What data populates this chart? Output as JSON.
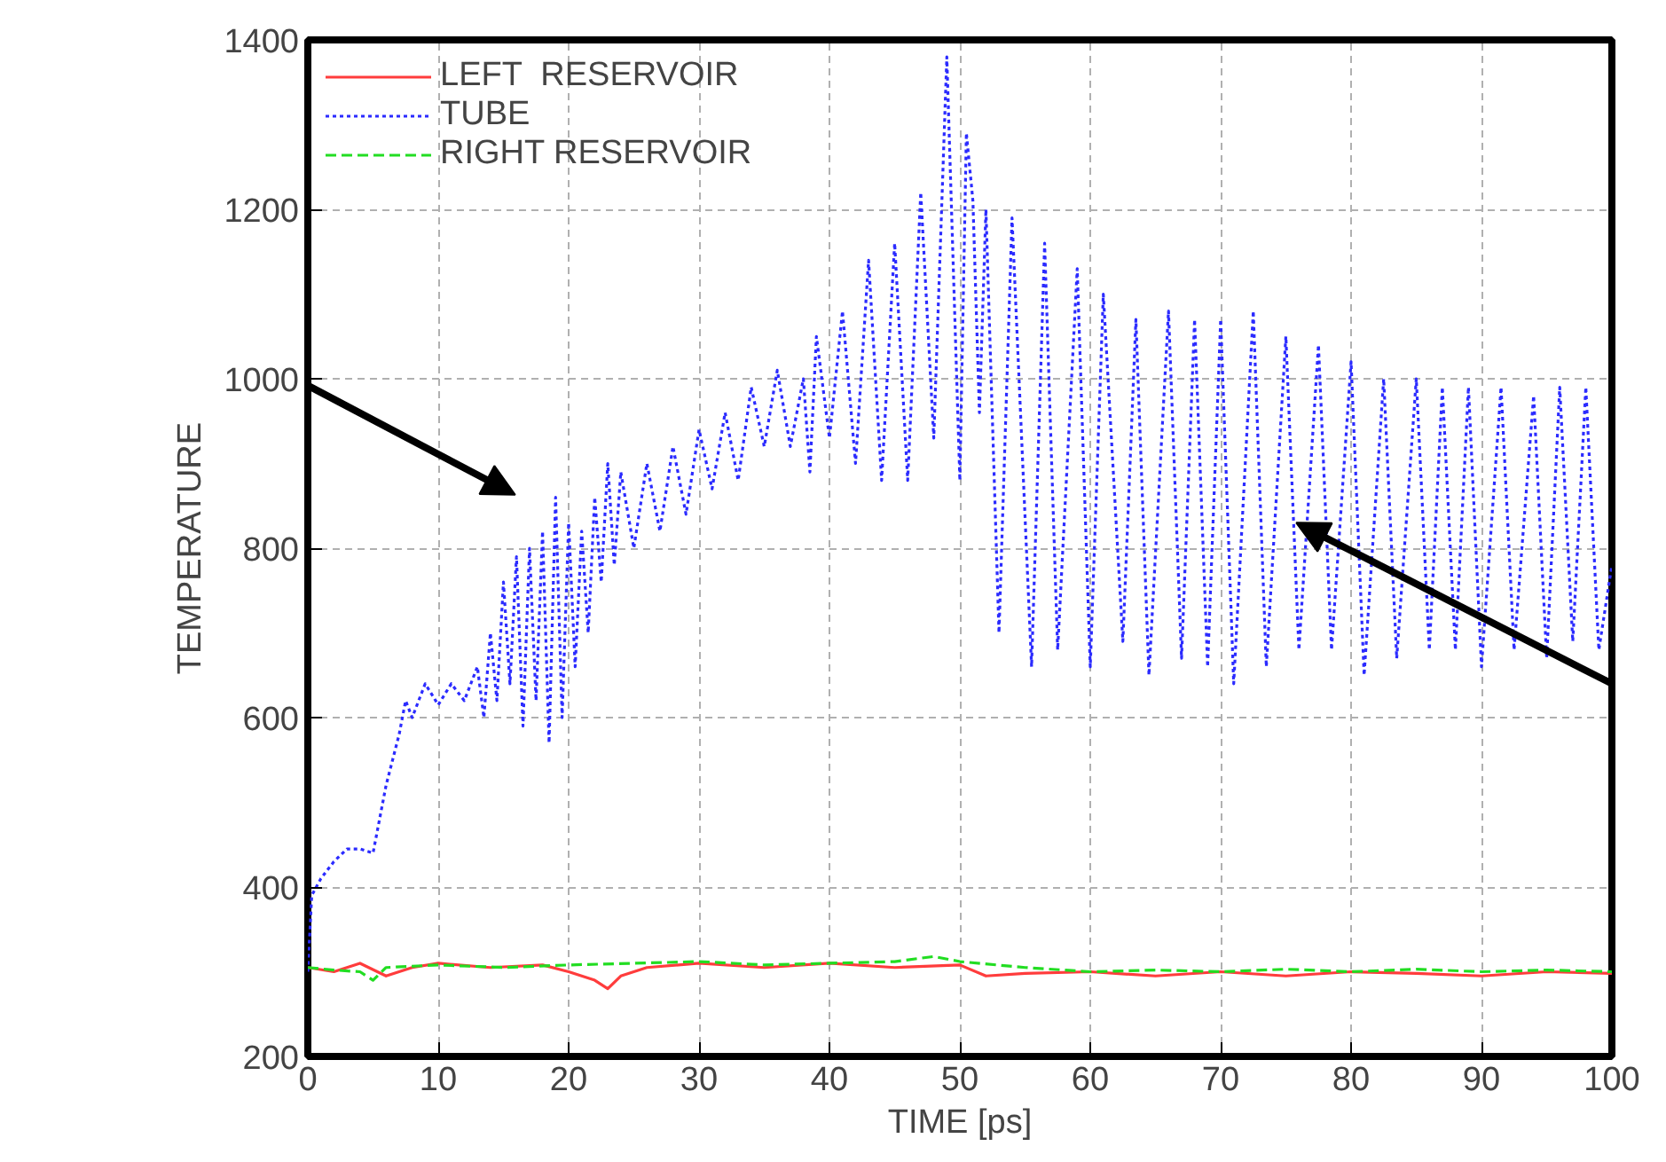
{
  "chart_data": {
    "type": "line",
    "xlabel": "TIME [ps]",
    "ylabel": "TEMPERATURE",
    "xlim": [
      0,
      100
    ],
    "xticks": [
      0,
      10,
      20,
      30,
      40,
      50,
      60,
      70,
      80,
      90,
      100
    ],
    "ylim": [
      200,
      1400
    ],
    "yticks": [
      200,
      400,
      600,
      800,
      1000,
      1200,
      1400
    ],
    "grid": true,
    "legend": "top left",
    "series": [
      {
        "name": "LEFT  RESERVOIR",
        "color": "#ff3c3c",
        "line_style": "solid",
        "x": [
          0,
          2,
          4,
          6,
          8,
          10,
          14,
          18,
          20,
          22,
          23,
          24,
          26,
          30,
          35,
          40,
          45,
          50,
          52,
          55,
          60,
          65,
          70,
          75,
          80,
          85,
          90,
          95,
          100
        ],
        "values": [
          305,
          300,
          310,
          295,
          305,
          310,
          305,
          308,
          300,
          290,
          280,
          295,
          305,
          310,
          305,
          310,
          305,
          308,
          295,
          298,
          300,
          295,
          300,
          295,
          300,
          298,
          295,
          300,
          298
        ]
      },
      {
        "name": "TUBE",
        "color": "#2b2bff",
        "line_style": "dotted",
        "x": [
          0,
          0.3,
          1,
          2,
          3,
          4,
          5,
          6,
          7,
          7.5,
          8,
          9,
          10,
          11,
          12,
          13,
          13.5,
          14,
          14.5,
          15,
          15.5,
          16,
          16.5,
          17,
          17.5,
          18,
          18.5,
          19,
          19.5,
          20,
          20.5,
          21,
          21.5,
          22,
          22.5,
          23,
          23.5,
          24,
          25,
          26,
          27,
          28,
          29,
          30,
          31,
          32,
          33,
          34,
          35,
          36,
          37,
          38,
          38.5,
          39,
          40,
          41,
          42,
          43,
          44,
          45,
          46,
          47,
          48,
          49,
          50,
          50.5,
          51,
          51.5,
          52,
          53,
          54,
          55.5,
          56.5,
          57.5,
          59,
          60,
          61,
          62.5,
          63.5,
          64.5,
          66,
          67,
          68,
          69,
          70,
          71,
          72.5,
          73.5,
          75,
          76,
          77.5,
          78.5,
          80,
          81,
          82.5,
          83.5,
          85,
          86,
          87,
          88,
          89,
          90,
          91.5,
          92.5,
          94,
          95,
          96,
          97,
          98,
          99,
          100
        ],
        "values": [
          300,
          390,
          410,
          430,
          445,
          445,
          440,
          520,
          580,
          620,
          600,
          640,
          615,
          640,
          620,
          660,
          600,
          700,
          620,
          760,
          640,
          790,
          590,
          800,
          620,
          820,
          570,
          860,
          600,
          830,
          660,
          820,
          700,
          860,
          760,
          900,
          780,
          890,
          800,
          900,
          820,
          920,
          840,
          940,
          870,
          960,
          880,
          990,
          920,
          1010,
          920,
          1000,
          890,
          1050,
          930,
          1080,
          900,
          1140,
          880,
          1160,
          880,
          1220,
          930,
          1380,
          880,
          1290,
          1210,
          960,
          1200,
          700,
          1190,
          660,
          1160,
          680,
          1130,
          660,
          1100,
          690,
          1070,
          650,
          1080,
          670,
          1070,
          660,
          1070,
          640,
          1080,
          660,
          1050,
          680,
          1040,
          680,
          1020,
          650,
          1000,
          670,
          1000,
          680,
          990,
          680,
          990,
          660,
          990,
          680,
          980,
          670,
          990,
          690,
          990,
          680,
          780
        ]
      },
      {
        "name": "RIGHT RESERVOIR",
        "color": "#22dd22",
        "line_style": "dashed",
        "x": [
          0,
          2,
          4,
          5,
          6,
          10,
          15,
          20,
          25,
          30,
          35,
          40,
          45,
          48,
          50,
          55,
          60,
          65,
          70,
          75,
          80,
          85,
          90,
          95,
          100
        ],
        "values": [
          305,
          302,
          300,
          290,
          305,
          308,
          305,
          308,
          310,
          312,
          308,
          310,
          312,
          318,
          312,
          305,
          300,
          302,
          300,
          303,
          300,
          303,
          300,
          302,
          300
        ]
      }
    ]
  }
}
